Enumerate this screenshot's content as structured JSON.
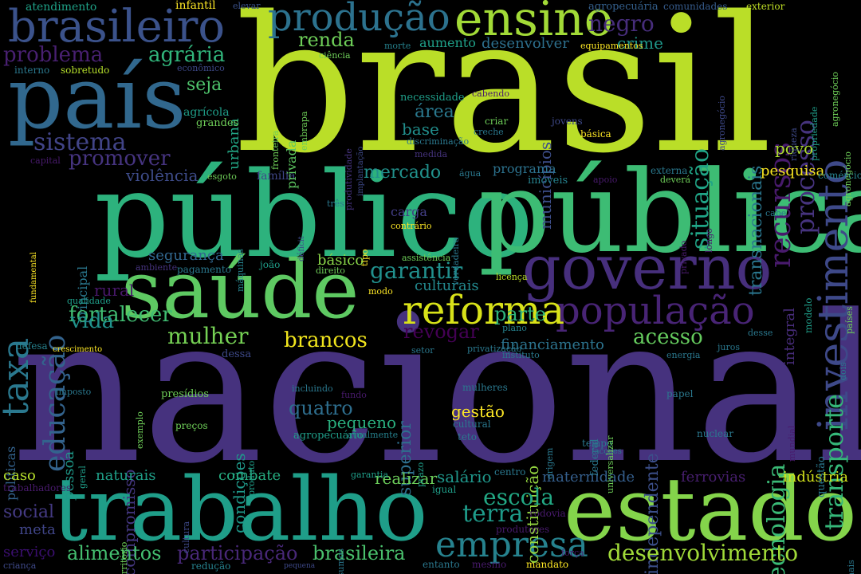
{
  "words": [
    {
      "text": "brasil",
      "color": "#bade28"
    },
    {
      "text": "nacional",
      "color": "#46327e"
    },
    {
      "text": "público",
      "color": "#2db27d"
    },
    {
      "text": "pública",
      "color": "#3dbc74"
    },
    {
      "text": "trabalho",
      "color": "#1f9e89"
    },
    {
      "text": "estado",
      "color": "#84d44b"
    },
    {
      "text": "país",
      "color": "#31688e"
    },
    {
      "text": "saúde",
      "color": "#5ec962"
    },
    {
      "text": "governo",
      "color": "#472f7d"
    },
    {
      "text": "ensino",
      "color": "#a2da37"
    },
    {
      "text": "brasileiro",
      "color": "#3b528b"
    },
    {
      "text": "produção",
      "color": "#2c728e"
    },
    {
      "text": "população",
      "color": "#482475"
    },
    {
      "text": "reforma",
      "color": "#3e4989"
    },
    {
      "text": "empresa",
      "color": "#2a788e"
    },
    {
      "text": "investimento",
      "color": "#414487"
    },
    {
      "text": "taxa",
      "color": "#d8e219"
    },
    {
      "text": "sistema",
      "color": "#26828e"
    },
    {
      "text": "educação",
      "color": "#33638d"
    },
    {
      "text": "desenvolvimento",
      "color": "#a0da39"
    },
    {
      "text": "recursos",
      "color": "#481a6c"
    },
    {
      "text": "processo",
      "color": "#46337e"
    },
    {
      "text": "transporte",
      "color": "#35b779"
    },
    {
      "text": "tecnologia",
      "color": "#3aba76"
    },
    {
      "text": "mulher",
      "color": "#75d054"
    },
    {
      "text": "problema",
      "color": "#482071"
    },
    {
      "text": "situação",
      "color": "#20a486"
    },
    {
      "text": "promover",
      "color": "#463480"
    },
    {
      "text": "garantir",
      "color": "#21908d"
    },
    {
      "text": "escola",
      "color": "#22a884"
    },
    {
      "text": "alimentos",
      "color": "#44bf70"
    },
    {
      "text": "participação",
      "color": "#482878"
    },
    {
      "text": "brasileira",
      "color": "#4ac16d"
    },
    {
      "text": "fortalecer",
      "color": "#40bd72"
    },
    {
      "text": "terra",
      "color": "#1e9b8a"
    },
    {
      "text": "transnacionais",
      "color": "#2a768e"
    },
    {
      "text": "agrária",
      "color": "#31b57b"
    },
    {
      "text": "renda",
      "color": "#6ece58"
    },
    {
      "text": "negro",
      "color": "#472d7b"
    },
    {
      "text": "brancos",
      "color": "#f1e51d"
    },
    {
      "text": "acesso",
      "color": "#65cb5e"
    },
    {
      "text": "revogar",
      "color": "#440154"
    },
    {
      "text": "parte",
      "color": "#2fb47c"
    },
    {
      "text": "vida",
      "color": "#20928c"
    },
    {
      "text": "mercado",
      "color": "#21918c"
    },
    {
      "text": "violência",
      "color": "#3e4c8a"
    },
    {
      "text": "social",
      "color": "#443a83"
    },
    {
      "text": "rural",
      "color": "#48186a"
    },
    {
      "text": "segurança",
      "color": "#31668e"
    },
    {
      "text": "financiamento",
      "color": "#2c738e"
    },
    {
      "text": "área",
      "color": "#2a788e"
    },
    {
      "text": "base",
      "color": "#218f8d"
    },
    {
      "text": "crime",
      "color": "#1f988b"
    },
    {
      "text": "municípios",
      "color": "#3d4e8a"
    },
    {
      "text": "seja",
      "color": "#4ec36b"
    },
    {
      "text": "urbana",
      "color": "#22a785"
    },
    {
      "text": "maternidade",
      "color": "#355f8d"
    },
    {
      "text": "ferrovias",
      "color": "#481f70"
    },
    {
      "text": "indústria",
      "color": "#d2e21b"
    },
    {
      "text": "naturais",
      "color": "#1f9f88"
    },
    {
      "text": "combate",
      "color": "#26ad81"
    },
    {
      "text": "realizar",
      "color": "#6ccd5a"
    },
    {
      "text": "salário",
      "color": "#1f978b"
    },
    {
      "text": "quatro",
      "color": "#2e6e8e"
    },
    {
      "text": "pequeno",
      "color": "#2ab07f"
    },
    {
      "text": "gestão",
      "color": "#fde725"
    },
    {
      "text": "desenvolver",
      "color": "#2d708e"
    },
    {
      "text": "aumento",
      "color": "#1fa088"
    },
    {
      "text": "programa",
      "color": "#2c728e"
    },
    {
      "text": "pesquisa",
      "color": "#f8e621"
    },
    {
      "text": "povo",
      "color": "#addc30"
    },
    {
      "text": "carga",
      "color": "#433e85"
    },
    {
      "text": "pessoa",
      "color": "#1f9a8a"
    },
    {
      "text": "superior",
      "color": "#2e6f8e"
    },
    {
      "text": "constituição",
      "color": "#95d840"
    },
    {
      "text": "independente",
      "color": "#3c4f8a"
    },
    {
      "text": "compromisso",
      "color": "#453882"
    },
    {
      "text": "condições",
      "color": "#1f998a"
    },
    {
      "text": "básico",
      "color": "#89d548"
    },
    {
      "text": "culturais",
      "color": "#23898e"
    },
    {
      "text": "integral",
      "color": "#472c7a"
    },
    {
      "text": "meta",
      "color": "#404588"
    },
    {
      "text": "serviço",
      "color": "#3b0f70"
    },
    {
      "text": "caso",
      "color": "#b5de2b"
    },
    {
      "text": "políticas",
      "color": "#33628d"
    },
    {
      "text": "família",
      "color": "#3f4788"
    },
    {
      "text": "principal",
      "color": "#2a778e"
    },
    {
      "text": "atendimento",
      "color": "#1fa187"
    },
    {
      "text": "infantil",
      "color": "#fde725"
    },
    {
      "text": "elevar",
      "color": "#3b528b"
    },
    {
      "text": "agropecuária",
      "color": "#34608d"
    },
    {
      "text": "comunidades",
      "color": "#365c8d"
    },
    {
      "text": "exterior",
      "color": "#c0df25"
    },
    {
      "text": "educação",
      "color": "#33638d"
    }
  ],
  "small_words": [
    "sobretudo",
    "interno",
    "ciência",
    "morte",
    "econômico",
    "agrícola",
    "grandes",
    "fronteira",
    "privada",
    "embrapa",
    "produtividade",
    "implantação",
    "necessidade",
    "cabendo",
    "criar",
    "jovens",
    "básica",
    "riqueza",
    "propriedade",
    "agronegócio",
    "equipamentos",
    "discriminação",
    "creche",
    "medida",
    "água",
    "imóveis",
    "apoio",
    "externa",
    "deverá",
    "cabe",
    "comércio",
    "capital",
    "esgoto",
    "três",
    "déficit",
    "tipo",
    "contrário",
    "verdadeira",
    "privado",
    "longo",
    "máquinas",
    "ambiente",
    "pagamento",
    "joão",
    "direito",
    "modo",
    "assistência",
    "licença",
    "modelo",
    "países",
    "qualidade",
    "defesa",
    "crescimento",
    "setor",
    "privatização",
    "instituto",
    "plano",
    "desse",
    "energia",
    "juros",
    "dois",
    "dessa",
    "incluindo",
    "mulheres",
    "fundo",
    "origem",
    "federal",
    "universalizar",
    "papel",
    "mundial",
    "imposto",
    "exemplo",
    "geral",
    "presídios",
    "atualmente",
    "cultural",
    "teto",
    "tempo",
    "facções",
    "nuclear",
    "questão",
    "preços",
    "produto",
    "prazo",
    "agropecuário",
    "trabalhadores",
    "cultura",
    "garantia",
    "centro",
    "igual",
    "insumos",
    "rodovia",
    "produtores",
    "força",
    "território",
    "criança",
    "redução",
    "pequena",
    "entanto",
    "mesmo",
    "mandato",
    "nacionais",
    "fundamental",
    "aposentadorias",
    "unidade",
    "cultura",
    "gestão"
  ]
}
